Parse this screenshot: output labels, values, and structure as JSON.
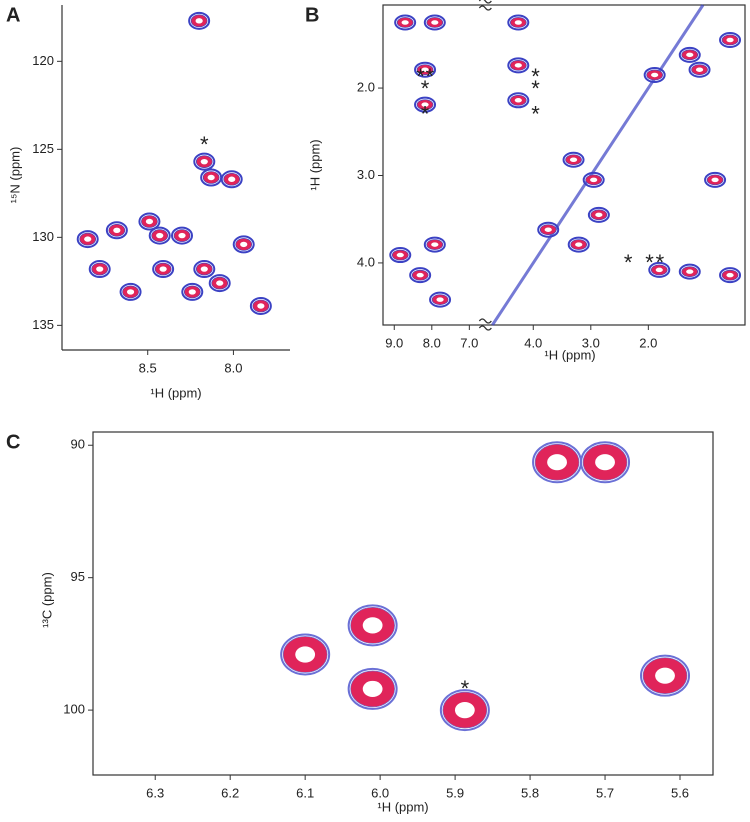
{
  "chart_data": [
    {
      "type": "scatter",
      "panel": "A",
      "xlabel": "¹H (ppm)",
      "ylabel": "¹⁵N (ppm)",
      "color": "#e0245a",
      "edge_color": "#3b42c4",
      "xlim": [
        9.0,
        7.67
      ],
      "ylim": [
        136.4,
        116.8
      ],
      "xticks": [
        {
          "value": 8.5,
          "label": "8.5"
        },
        {
          "value": 8.0,
          "label": "8.0"
        }
      ],
      "yticks": [
        120,
        125,
        130,
        135
      ],
      "x": [
        8.2,
        8.17,
        8.13,
        8.01,
        8.85,
        8.68,
        8.49,
        8.43,
        8.3,
        8.78,
        8.41,
        8.17,
        8.08,
        7.94,
        8.24,
        8.6,
        7.84
      ],
      "values": [
        117.7,
        125.7,
        126.6,
        126.7,
        130.1,
        129.6,
        129.1,
        129.9,
        129.9,
        131.8,
        131.8,
        131.8,
        132.6,
        130.4,
        133.1,
        133.1,
        133.9
      ],
      "annotations": [
        {
          "text": "*",
          "x": 8.17,
          "y": 124.6
        }
      ]
    },
    {
      "type": "scatter",
      "panel": "B",
      "xlabel": "¹H (ppm)",
      "ylabel": "¹H (ppm)",
      "color": "#e0245a",
      "edge_color": "#3b42c4",
      "diagonal": true,
      "xlim": [
        9.3,
        0.32
      ],
      "xbreak": [
        6.6,
        4.85
      ],
      "ylim": [
        4.71,
        1.05
      ],
      "xticks": [
        {
          "value": 9.0,
          "label": "9.0"
        },
        {
          "value": 8.0,
          "label": "8.0"
        },
        {
          "value": 7.0,
          "label": "7.0"
        },
        {
          "value": 4.0,
          "label": "4.0"
        },
        {
          "value": 3.0,
          "label": "3.0"
        },
        {
          "value": 2.0,
          "label": "2.0"
        }
      ],
      "yticks": [
        {
          "value": 2.0,
          "label": "2.0"
        },
        {
          "value": 3.0,
          "label": "3.0"
        },
        {
          "value": 4.0,
          "label": "4.0"
        }
      ],
      "x": [
        8.71,
        7.92,
        8.18,
        8.18,
        4.26,
        4.26,
        4.26,
        1.89,
        1.11,
        0.58,
        1.28,
        0.84,
        2.95,
        3.3,
        3.74,
        3.21,
        2.86,
        7.92,
        8.84,
        8.31,
        7.78,
        1.81,
        1.28,
        0.58
      ],
      "values": [
        1.25,
        1.25,
        1.79,
        2.19,
        1.25,
        1.74,
        2.14,
        1.85,
        1.79,
        1.45,
        1.62,
        3.05,
        3.05,
        2.82,
        3.62,
        3.79,
        3.45,
        3.79,
        3.91,
        4.14,
        4.42,
        4.08,
        4.1,
        4.14
      ],
      "annotations": [
        {
          "text": "*",
          "x": 8.3,
          "y": 1.84
        },
        {
          "text": "*",
          "x": 8.05,
          "y": 1.84
        },
        {
          "text": "*",
          "x": 8.18,
          "y": 1.98
        },
        {
          "text": "*",
          "x": 8.18,
          "y": 2.27
        },
        {
          "text": "*",
          "x": 3.96,
          "y": 1.84
        },
        {
          "text": "*",
          "x": 3.96,
          "y": 1.98
        },
        {
          "text": "*",
          "x": 3.96,
          "y": 2.27
        },
        {
          "text": "*",
          "x": 2.35,
          "y": 3.97
        },
        {
          "text": "*",
          "x": 1.98,
          "y": 3.97
        },
        {
          "text": "*",
          "x": 1.8,
          "y": 3.97
        }
      ]
    },
    {
      "type": "scatter",
      "panel": "C",
      "xlabel": "¹H (ppm)",
      "ylabel": "¹³C (ppm)",
      "color": "#e0245a",
      "edge_color": "#6a70d6",
      "xlim": [
        6.383,
        5.556
      ],
      "ylim": [
        102.45,
        89.5
      ],
      "xticks": [
        6.3,
        6.2,
        6.1,
        {
          "value": 6.0,
          "label": "6.0"
        },
        5.9,
        5.8,
        5.7,
        5.6
      ],
      "yticks": [
        90,
        95,
        100
      ],
      "x": [
        5.764,
        5.7,
        6.1,
        6.01,
        6.01,
        5.887,
        5.62
      ],
      "values": [
        90.64,
        90.64,
        97.9,
        96.8,
        99.2,
        100.0,
        98.7
      ],
      "annotations": [
        {
          "text": "*",
          "x": 5.887,
          "y": 99.1
        }
      ]
    }
  ]
}
